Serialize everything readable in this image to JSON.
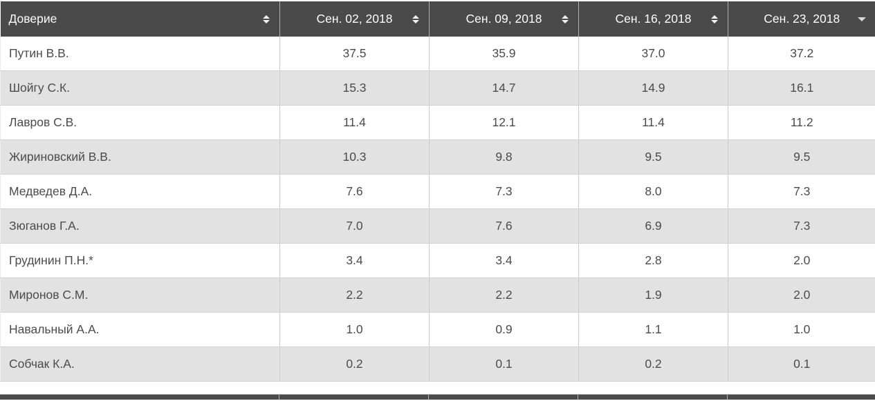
{
  "table": {
    "title_column": {
      "label": "Доверие",
      "sort": "both"
    },
    "date_columns": [
      {
        "label": "Сен. 02, 2018",
        "sort": "both"
      },
      {
        "label": "Сен. 09, 2018",
        "sort": "both"
      },
      {
        "label": "Сен. 16, 2018",
        "sort": "both"
      },
      {
        "label": "Сен. 23, 2018",
        "sort": "desc"
      }
    ],
    "rows": [
      {
        "name": "Путин В.В.",
        "values": [
          "37.5",
          "35.9",
          "37.0",
          "37.2"
        ]
      },
      {
        "name": "Шойгу С.К.",
        "values": [
          "15.3",
          "14.7",
          "14.9",
          "16.1"
        ]
      },
      {
        "name": "Лавров С.В.",
        "values": [
          "11.4",
          "12.1",
          "11.4",
          "11.2"
        ]
      },
      {
        "name": "Жириновский В.В.",
        "values": [
          "10.3",
          "9.8",
          "9.5",
          "9.5"
        ]
      },
      {
        "name": "Медведев Д.А.",
        "values": [
          "7.6",
          "7.3",
          "8.0",
          "7.3"
        ]
      },
      {
        "name": "Зюганов Г.А.",
        "values": [
          "7.0",
          "7.6",
          "6.9",
          "7.3"
        ]
      },
      {
        "name": "Грудинин П.Н.*",
        "values": [
          "3.4",
          "3.4",
          "2.8",
          "2.0"
        ]
      },
      {
        "name": "Миронов С.М.",
        "values": [
          "2.2",
          "2.2",
          "1.9",
          "2.0"
        ]
      },
      {
        "name": "Навальный А.А.",
        "values": [
          "1.0",
          "0.9",
          "1.1",
          "1.0"
        ]
      },
      {
        "name": "Собчак К.А.",
        "values": [
          "0.2",
          "0.1",
          "0.2",
          "0.1"
        ]
      }
    ]
  },
  "icons": {
    "sort_both": "up-down-triangles",
    "sort_desc": "down-triangle"
  },
  "colors": {
    "header_bg": "#4a4a4a",
    "header_text": "#fdfdfd",
    "row_odd_bg": "#ffffff",
    "row_even_bg": "#e2e2e2",
    "body_text": "#4b4b4b",
    "grid_line": "#c9c9c9"
  }
}
